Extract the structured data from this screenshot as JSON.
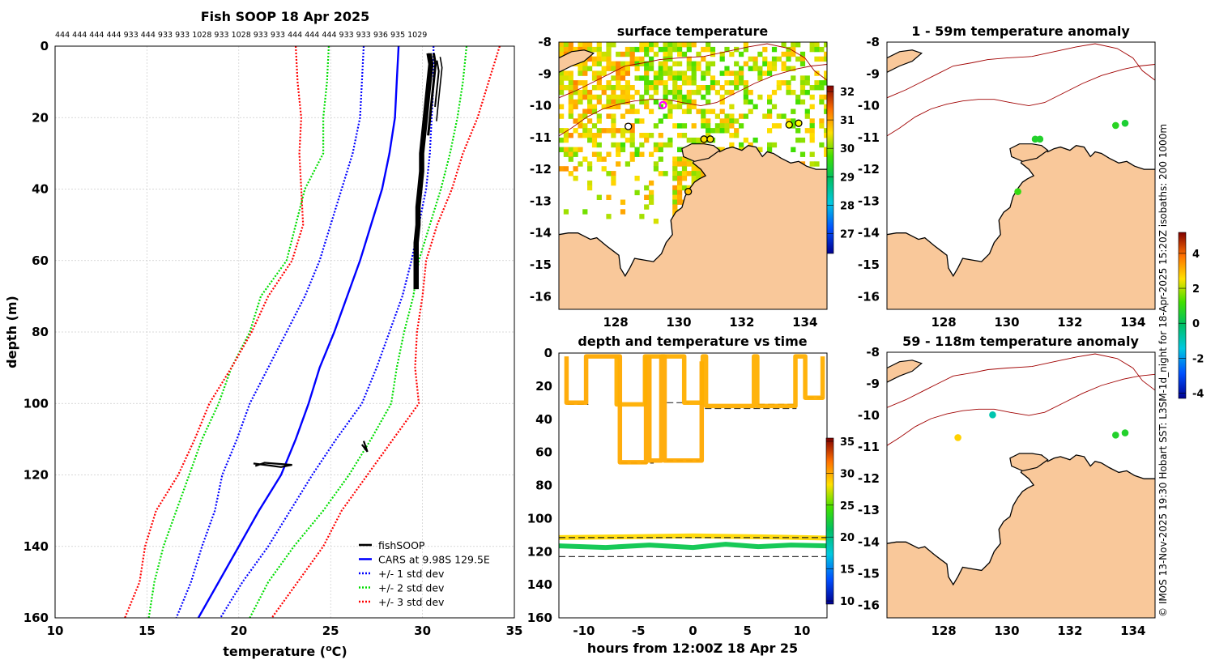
{
  "figure": {
    "credit": "© IMOS 13-Nov-2025 19:30 Hobart SST: L3SM-1d_night for 18-Apr-2025 15:20Z isobaths: 200  1000m",
    "land_color": "#f9c89a"
  },
  "chart_data": [
    {
      "id": "profile",
      "type": "line",
      "title": "Fish SOOP 18 Apr 2025",
      "top_labels": "444 444 444 444 933 444 933 933 1028 933 1028 933 933 444 444 444 933 933 936 935 1029",
      "xlabel": "temperature (oC)",
      "ylabel": "depth (m)",
      "xlim": [
        10,
        35
      ],
      "ylim": [
        160,
        0
      ],
      "xticks": [
        10,
        15,
        20,
        25,
        30,
        35
      ],
      "yticks": [
        0,
        20,
        40,
        60,
        80,
        100,
        120,
        140,
        160
      ],
      "grid": true,
      "legend": {
        "position": "bottom-right",
        "entries": [
          {
            "label": "fishSOOP",
            "color": "#000000",
            "style": "solid"
          },
          {
            "label": "CARS at 9.98S 129.5E",
            "color": "#0000ff",
            "style": "solid"
          },
          {
            "label": "+/- 1 std dev",
            "color": "#0000ff",
            "style": "dotted"
          },
          {
            "label": "+/- 2 std dev",
            "color": "#00dd00",
            "style": "dotted"
          },
          {
            "label": "+/- 3 std dev",
            "color": "#ff0000",
            "style": "dotted"
          }
        ]
      },
      "depth": [
        0,
        10,
        20,
        30,
        40,
        50,
        60,
        70,
        80,
        90,
        100,
        110,
        120,
        130,
        140,
        150,
        160
      ],
      "series": [
        {
          "name": "CARS mean",
          "color": "#0000ff",
          "style": "solid",
          "values": [
            28.7,
            28.6,
            28.5,
            28.2,
            27.8,
            27.2,
            26.6,
            25.9,
            25.2,
            24.4,
            23.8,
            23.1,
            22.3,
            21.1,
            20.0,
            18.9,
            17.8
          ]
        },
        {
          "name": "+1 std",
          "color": "#0000ff",
          "style": "dotted",
          "values": [
            30.6,
            30.6,
            30.5,
            30.4,
            30.2,
            29.8,
            29.4,
            28.9,
            28.2,
            27.5,
            26.7,
            25.3,
            24.0,
            22.8,
            21.6,
            20.2,
            19.0
          ]
        },
        {
          "name": "-1 std",
          "color": "#0000ff",
          "style": "dotted",
          "values": [
            26.8,
            26.7,
            26.6,
            26.2,
            25.6,
            25.0,
            24.4,
            23.6,
            22.6,
            21.6,
            20.6,
            19.9,
            19.1,
            18.7,
            18.0,
            17.4,
            16.6
          ]
        },
        {
          "name": "+2 std",
          "color": "#00dd00",
          "style": "dotted",
          "values": [
            32.4,
            32.2,
            31.9,
            31.5,
            31.0,
            30.4,
            29.8,
            29.5,
            29.0,
            28.6,
            28.3,
            27.2,
            26.0,
            24.6,
            23.0,
            21.6,
            20.6
          ]
        },
        {
          "name": "-2 std",
          "color": "#00dd00",
          "style": "dotted",
          "values": [
            24.9,
            24.8,
            24.6,
            24.6,
            23.6,
            23.1,
            22.6,
            21.2,
            20.6,
            19.6,
            18.9,
            18.0,
            17.3,
            16.6,
            15.9,
            15.4,
            15.1
          ]
        },
        {
          "name": "+3 std",
          "color": "#ff0000",
          "style": "dotted",
          "values": [
            34.2,
            33.6,
            33.0,
            32.2,
            31.6,
            30.8,
            30.2,
            30.0,
            29.7,
            29.6,
            29.8,
            28.4,
            27.0,
            25.6,
            24.6,
            23.2,
            21.8
          ]
        },
        {
          "name": "-3 std",
          "color": "#ff0000",
          "style": "dotted",
          "values": [
            23.1,
            23.2,
            23.4,
            23.3,
            23.4,
            23.5,
            22.9,
            21.6,
            20.7,
            19.6,
            18.4,
            17.6,
            16.7,
            15.5,
            14.9,
            14.6,
            13.8
          ]
        }
      ],
      "fishsoop": {
        "upper": {
          "depth": [
            2,
            5,
            10,
            15,
            20,
            25,
            30,
            35,
            40,
            45,
            50,
            55,
            60,
            65,
            68
          ],
          "temp": [
            30.3,
            30.4,
            30.3,
            30.2,
            30.1,
            30.0,
            29.9,
            29.9,
            29.8,
            29.7,
            29.7,
            29.6,
            29.6,
            29.6,
            29.6
          ]
        },
        "deep_a": {
          "depth": [
            116.8,
            117.3,
            117.8,
            117.2,
            116.6,
            117.5
          ],
          "temp": [
            20.8,
            21.6,
            22.3,
            22.9,
            21.4,
            20.9
          ]
        },
        "deep_b": {
          "depth": [
            110.5,
            112,
            113.5,
            111.5
          ],
          "temp": [
            26.8,
            26.9,
            27.0,
            26.7
          ]
        }
      }
    },
    {
      "id": "surface",
      "type": "heatmap",
      "title": "surface temperature",
      "xlim": [
        126.2,
        134.7
      ],
      "ylim": [
        -16.4,
        -8
      ],
      "xticks": [
        128,
        130,
        132,
        134
      ],
      "yticks": [
        -8,
        -9,
        -10,
        -11,
        -12,
        -13,
        -14,
        -15,
        -16
      ],
      "colorbar": {
        "min": 26.3,
        "max": 32.2,
        "ticks": [
          27,
          28,
          29,
          30,
          31,
          32
        ]
      },
      "markers": [
        {
          "lon": 129.5,
          "lat": -9.98,
          "color": "#ff00ff"
        },
        {
          "lon": 128.4,
          "lat": -10.65,
          "color": "#ffffff"
        },
        {
          "lon": 130.8,
          "lat": -11.05,
          "color": "#ffe000"
        },
        {
          "lon": 131.0,
          "lat": -11.05,
          "color": "#ffe000"
        },
        {
          "lon": 130.3,
          "lat": -12.7,
          "color": "#ffc000"
        },
        {
          "lon": 133.5,
          "lat": -10.6,
          "color": "#ffff00"
        },
        {
          "lon": 133.8,
          "lat": -10.55,
          "color": "#ffff00"
        }
      ]
    },
    {
      "id": "anom1",
      "type": "scatter",
      "title": "1 - 59m temperature anomaly",
      "xlim": [
        126.2,
        134.7
      ],
      "ylim": [
        -16.4,
        -8
      ],
      "xticks": [
        128,
        130,
        132,
        134
      ],
      "yticks": [
        -8,
        -9,
        -10,
        -11,
        -12,
        -13,
        -14,
        -15,
        -16
      ],
      "points": [
        {
          "lon": 130.9,
          "lat": -11.05,
          "anomaly": 0.5
        },
        {
          "lon": 131.05,
          "lat": -11.05,
          "anomaly": 0.5
        },
        {
          "lon": 130.35,
          "lat": -12.7,
          "anomaly": 0.8
        },
        {
          "lon": 133.45,
          "lat": -10.62,
          "anomaly": 0.6
        },
        {
          "lon": 133.75,
          "lat": -10.55,
          "anomaly": 0.4
        }
      ]
    },
    {
      "id": "anom2",
      "type": "scatter",
      "title": "59 - 118m temperature anomaly",
      "xlim": [
        126.2,
        134.7
      ],
      "ylim": [
        -16.4,
        -8
      ],
      "xticks": [
        128,
        130,
        132,
        134
      ],
      "yticks": [
        -8,
        -9,
        -10,
        -11,
        -12,
        -13,
        -14,
        -15,
        -16
      ],
      "points": [
        {
          "lon": 129.55,
          "lat": -9.98,
          "anomaly": -1.0
        },
        {
          "lon": 128.45,
          "lat": -10.7,
          "anomaly": 2.5
        },
        {
          "lon": 133.45,
          "lat": -10.62,
          "anomaly": 0.5
        },
        {
          "lon": 133.75,
          "lat": -10.55,
          "anomaly": 0.5
        }
      ],
      "colorbar": {
        "min": -4.3,
        "max": 5.2,
        "ticks": [
          -4,
          -2,
          0,
          2,
          4
        ]
      }
    },
    {
      "id": "timeseries",
      "type": "scatter",
      "title": "depth and temperature vs time",
      "xlabel": "hours from 12:00Z 18 Apr 25",
      "xlim": [
        -12.3,
        12.3
      ],
      "ylim": [
        160,
        0
      ],
      "xticks": [
        -10,
        -5,
        0,
        5,
        10
      ],
      "yticks": [
        0,
        20,
        40,
        60,
        80,
        100,
        120,
        140,
        160
      ],
      "colorbar": {
        "min": 9.5,
        "max": 35.5,
        "ticks": [
          10,
          15,
          20,
          25,
          30,
          35
        ]
      },
      "reference_depths": [
        {
          "x0": -11.5,
          "x1": -9.6,
          "depth": 31
        },
        {
          "x0": -6.6,
          "x1": -3.6,
          "depth": 66.5
        },
        {
          "x0": -2.4,
          "x1": 0.6,
          "depth": 65
        },
        {
          "x0": -2.4,
          "x1": -0.3,
          "depth": 30
        },
        {
          "x0": 1.1,
          "x1": 9.5,
          "depth": 33.5
        },
        {
          "x0": 6,
          "x1": 9.5,
          "depth": 31
        },
        {
          "x0": 10.5,
          "x1": 12.3,
          "depth": 27
        },
        {
          "x0": -12.3,
          "x1": 12.3,
          "depth": 111.5
        },
        {
          "x0": -12.3,
          "x1": 12.3,
          "depth": 123
        }
      ],
      "tracks": [
        {
          "name": "shallow",
          "temp": 29.5,
          "points": [
            [
              -11.6,
              2
            ],
            [
              -11.6,
              30
            ],
            [
              -9.8,
              30
            ],
            [
              -9.8,
              2
            ],
            [
              -6.7,
              2
            ],
            [
              -6.7,
              66
            ],
            [
              -4.3,
              66
            ],
            [
              -4.3,
              3
            ],
            [
              -4.0,
              3
            ],
            [
              -4.0,
              65
            ],
            [
              -2.9,
              65
            ],
            [
              -2.9,
              2
            ],
            [
              -2.6,
              2
            ],
            [
              -2.6,
              65
            ],
            [
              0.8,
              65
            ],
            [
              0.8,
              5
            ]
          ]
        },
        {
          "name": "gear2",
          "temp": 29.3,
          "points": [
            [
              -7.0,
              2
            ],
            [
              -7.0,
              31
            ],
            [
              -4.4,
              31
            ],
            [
              -4.4,
              2
            ],
            [
              -0.8,
              2
            ],
            [
              -0.8,
              30
            ],
            [
              0.9,
              30
            ],
            [
              0.9,
              2
            ],
            [
              1.2,
              2
            ],
            [
              1.2,
              32
            ],
            [
              5.6,
              32
            ],
            [
              5.6,
              2
            ],
            [
              5.9,
              2
            ],
            [
              5.9,
              32
            ],
            [
              9.4,
              32
            ],
            [
              9.4,
              2
            ],
            [
              10.3,
              2
            ],
            [
              10.3,
              27
            ],
            [
              11.9,
              27
            ],
            [
              11.9,
              2
            ]
          ]
        },
        {
          "name": "deep_yellow",
          "temp": 27.8,
          "points": [
            [
              -12.3,
              111.5
            ],
            [
              -6,
              111
            ],
            [
              0,
              110.5
            ],
            [
              6,
              111
            ],
            [
              12.3,
              111.8
            ]
          ]
        },
        {
          "name": "deep_green",
          "temp": 21.5,
          "points": [
            [
              -12.3,
              116.5
            ],
            [
              -8,
              117.5
            ],
            [
              -4,
              116
            ],
            [
              0,
              117.5
            ],
            [
              3,
              115.5
            ],
            [
              6,
              117
            ],
            [
              9,
              116
            ],
            [
              12.3,
              116.5
            ]
          ]
        }
      ]
    }
  ]
}
